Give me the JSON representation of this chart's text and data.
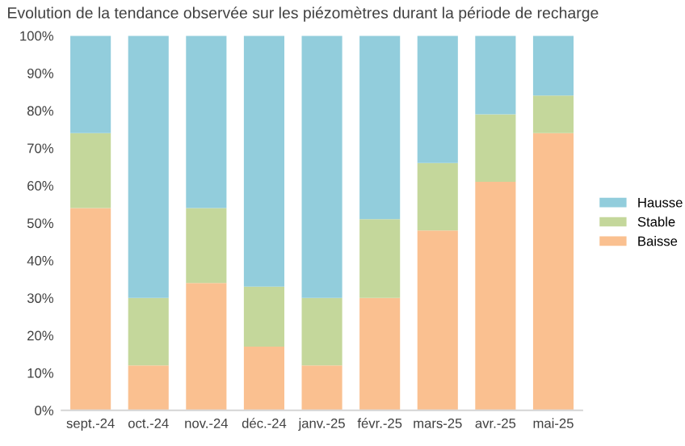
{
  "chart_data": {
    "type": "bar",
    "stacked": true,
    "title": "Evolution de la tendance observée sur les piézomètres durant la période de recharge",
    "categories": [
      "sept.-24",
      "oct.-24",
      "nov.-24",
      "déc.-24",
      "janv.-25",
      "févr.-25",
      "mars-25",
      "avr.-25",
      "mai-25"
    ],
    "series": [
      {
        "name": "Baisse",
        "color": "#fac090",
        "values": [
          54,
          12,
          34,
          17,
          12,
          30,
          48,
          61,
          74
        ]
      },
      {
        "name": "Stable",
        "color": "#c4d79b",
        "values": [
          20,
          18,
          20,
          16,
          18,
          21,
          18,
          18,
          10
        ]
      },
      {
        "name": "Hausse",
        "color": "#92cddc",
        "values": [
          26,
          70,
          46,
          67,
          70,
          49,
          34,
          21,
          16
        ]
      }
    ],
    "ylim": [
      0,
      100
    ],
    "yticks": [
      {
        "value": 0,
        "label": "0%"
      },
      {
        "value": 10,
        "label": "10%"
      },
      {
        "value": 20,
        "label": "20%"
      },
      {
        "value": 30,
        "label": "30%"
      },
      {
        "value": 40,
        "label": "40%"
      },
      {
        "value": 50,
        "label": "50%"
      },
      {
        "value": 60,
        "label": "60%"
      },
      {
        "value": 70,
        "label": "70%"
      },
      {
        "value": 80,
        "label": "80%"
      },
      {
        "value": 90,
        "label": "90%"
      },
      {
        "value": 100,
        "label": "100%"
      }
    ],
    "grid": false,
    "legend": "right"
  }
}
